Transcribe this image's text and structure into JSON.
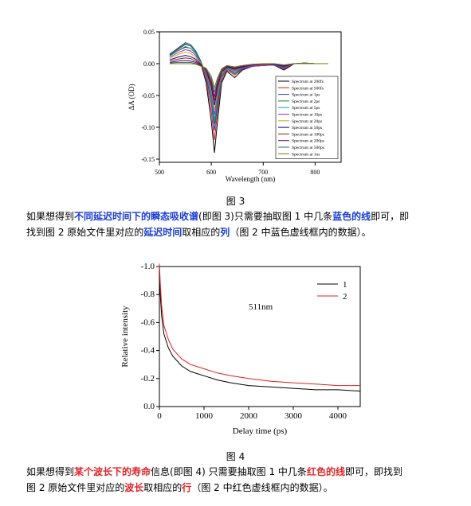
{
  "figure3": {
    "caption": "图 3",
    "chart_data": {
      "type": "line",
      "xlabel": "Wavelength (nm)",
      "ylabel": "ΔA (OD)",
      "xlim": [
        500,
        850
      ],
      "ylim": [
        -0.155,
        0.05
      ],
      "xticks": [
        "500",
        "600",
        "700",
        "800"
      ],
      "yticks": [
        "0.05",
        "0.00",
        "-0.05",
        "-0.10",
        "-0.15"
      ],
      "legend_position": "bottom-right",
      "x": [
        520,
        535,
        550,
        560,
        570,
        580,
        590,
        600,
        606,
        612,
        620,
        630,
        645,
        660,
        680,
        700,
        720,
        740,
        760,
        780,
        800,
        825
      ],
      "series": [
        {
          "name": "Spectrum at 200fs",
          "color": "#000000",
          "values": [
            0.013,
            0.02,
            0.026,
            0.024,
            0.016,
            0.0,
            -0.03,
            -0.09,
            -0.14,
            -0.09,
            -0.03,
            -0.012,
            -0.022,
            -0.01,
            -0.004,
            -0.003,
            -0.002,
            -0.01,
            0.0,
            0.001,
            0.0,
            0.0
          ]
        },
        {
          "name": "Spectrum at 500fs",
          "color": "#e02020",
          "values": [
            0.014,
            0.022,
            0.03,
            0.028,
            0.018,
            0.002,
            -0.025,
            -0.075,
            -0.12,
            -0.075,
            -0.026,
            -0.01,
            -0.018,
            -0.009,
            -0.004,
            -0.003,
            -0.002,
            -0.008,
            0.0,
            0.001,
            0.0,
            0.0
          ]
        },
        {
          "name": "Spectrum at 1ps",
          "color": "#2040e0",
          "values": [
            0.015,
            0.024,
            0.033,
            0.03,
            0.02,
            0.004,
            -0.02,
            -0.062,
            -0.105,
            -0.065,
            -0.022,
            -0.008,
            -0.016,
            -0.008,
            -0.004,
            -0.002,
            -0.002,
            -0.007,
            0.0,
            0.001,
            0.0,
            0.0
          ]
        },
        {
          "name": "Spectrum at 2ps",
          "color": "#208020",
          "values": [
            0.014,
            0.023,
            0.031,
            0.028,
            0.018,
            0.003,
            -0.018,
            -0.055,
            -0.095,
            -0.058,
            -0.02,
            -0.008,
            -0.014,
            -0.007,
            -0.003,
            -0.002,
            -0.001,
            -0.006,
            0.0,
            0.001,
            0.0,
            0.0
          ]
        },
        {
          "name": "Spectrum at 5ps",
          "color": "#00b0b0",
          "values": [
            0.012,
            0.02,
            0.027,
            0.024,
            0.016,
            0.002,
            -0.016,
            -0.05,
            -0.088,
            -0.052,
            -0.018,
            -0.007,
            -0.012,
            -0.006,
            -0.003,
            -0.002,
            -0.001,
            -0.005,
            0.0,
            0.0,
            0.0,
            0.0
          ]
        },
        {
          "name": "Spectrum at 10ps",
          "color": "#c020c0",
          "values": [
            0.01,
            0.017,
            0.022,
            0.02,
            0.013,
            0.001,
            -0.014,
            -0.045,
            -0.08,
            -0.047,
            -0.016,
            -0.006,
            -0.011,
            -0.006,
            -0.003,
            -0.002,
            -0.001,
            -0.005,
            0.0,
            0.0,
            0.0,
            0.0
          ]
        },
        {
          "name": "Spectrum at 20ps",
          "color": "#c8b400",
          "values": [
            0.008,
            0.014,
            0.018,
            0.016,
            0.01,
            0.0,
            -0.012,
            -0.04,
            -0.072,
            -0.042,
            -0.014,
            -0.005,
            -0.01,
            -0.005,
            -0.002,
            -0.001,
            -0.001,
            -0.004,
            0.0,
            0.0,
            0.0,
            0.0
          ]
        },
        {
          "name": "Spectrum at 50ps",
          "color": "#000090",
          "values": [
            0.006,
            0.01,
            0.013,
            0.011,
            0.007,
            -0.001,
            -0.011,
            -0.036,
            -0.065,
            -0.038,
            -0.013,
            -0.005,
            -0.009,
            -0.005,
            -0.002,
            -0.001,
            -0.001,
            -0.004,
            0.0,
            0.0,
            0.0,
            0.0
          ]
        },
        {
          "name": "Spectrum at 100ps",
          "color": "#902020",
          "values": [
            0.004,
            0.007,
            0.009,
            0.008,
            0.004,
            -0.002,
            -0.01,
            -0.032,
            -0.058,
            -0.034,
            -0.012,
            -0.004,
            -0.008,
            -0.004,
            -0.002,
            -0.001,
            -0.001,
            -0.003,
            0.0,
            0.0,
            0.0,
            0.0
          ]
        },
        {
          "name": "Spectrum at 200ps",
          "color": "#70007a",
          "values": [
            0.002,
            0.004,
            0.005,
            0.004,
            0.002,
            -0.003,
            -0.009,
            -0.028,
            -0.052,
            -0.03,
            -0.01,
            -0.004,
            -0.007,
            -0.004,
            -0.002,
            -0.001,
            -0.001,
            -0.003,
            0.0,
            0.0,
            0.0,
            0.0
          ]
        },
        {
          "name": "Spectrum at 500ps",
          "color": "#207070",
          "values": [
            0.001,
            0.002,
            0.002,
            0.002,
            0.0,
            -0.004,
            -0.008,
            -0.024,
            -0.045,
            -0.026,
            -0.009,
            -0.003,
            -0.006,
            -0.003,
            -0.001,
            -0.001,
            0.0,
            -0.002,
            0.0,
            0.0,
            0.0,
            0.0
          ]
        },
        {
          "name": "Spectrum at 1ns",
          "color": "#7a7a00",
          "values": [
            0.0,
            0.0,
            0.0,
            0.0,
            -0.001,
            -0.004,
            -0.007,
            -0.02,
            -0.038,
            -0.022,
            -0.008,
            -0.003,
            -0.005,
            -0.003,
            -0.001,
            0.0,
            0.0,
            -0.002,
            0.0,
            0.0,
            0.0,
            0.0
          ]
        }
      ]
    }
  },
  "paragraph1": {
    "p1": "如果想得到",
    "h1": "不同延迟时间下的瞬态吸收谱",
    "p2": "(即图 3)只需要抽取图 1 中几条",
    "h2": "蓝色的线",
    "p3": "即可，即",
    "p4": "找到图 2 原始文件里对应的",
    "h3": "延迟时间",
    "p5": "取相应的",
    "h4": "列",
    "p6": "（图 2 中蓝色虚线框内的数据）。"
  },
  "figure4": {
    "caption": "图 4",
    "chart_data": {
      "type": "line",
      "annotation": "511nm",
      "xlabel": "Delay time (ps)",
      "ylabel": "Relative intensity",
      "xlim": [
        0,
        4500
      ],
      "ylim": [
        0,
        -1.0
      ],
      "y_axis_inverted": true,
      "xticks": [
        "0",
        "1000",
        "2000",
        "3000",
        "4000"
      ],
      "yticks": [
        "-1.0",
        "-0.8",
        "-0.6",
        "-0.4",
        "-0.2",
        "0.0"
      ],
      "legend_position": "top-right",
      "x": [
        0,
        20,
        50,
        100,
        200,
        300,
        500,
        700,
        1000,
        1300,
        1600,
        2000,
        2500,
        3000,
        3500,
        4000,
        4500
      ],
      "series": [
        {
          "name": "1",
          "color": "#000000",
          "values": [
            -0.98,
            -0.8,
            -0.65,
            -0.52,
            -0.42,
            -0.36,
            -0.29,
            -0.25,
            -0.22,
            -0.19,
            -0.17,
            -0.15,
            -0.14,
            -0.13,
            -0.12,
            -0.12,
            -0.11
          ]
        },
        {
          "name": "2",
          "color": "#e02020",
          "values": [
            -1.02,
            -0.88,
            -0.72,
            -0.58,
            -0.48,
            -0.41,
            -0.34,
            -0.3,
            -0.27,
            -0.24,
            -0.22,
            -0.2,
            -0.18,
            -0.17,
            -0.16,
            -0.15,
            -0.15
          ]
        }
      ]
    }
  },
  "paragraph2": {
    "p1": "如果想得到",
    "h1": "某个波长下的寿命",
    "p2": "信息(即图 4) 只需要抽取图 1 中几条",
    "h2": "红色的线",
    "p3": "即可，即找到",
    "p4": "图 2 原始文件里对应的",
    "h3": "波长",
    "p5": "取相应的",
    "h4": "行",
    "p6": "（图 2 中红色虚线框内的数据）。"
  }
}
